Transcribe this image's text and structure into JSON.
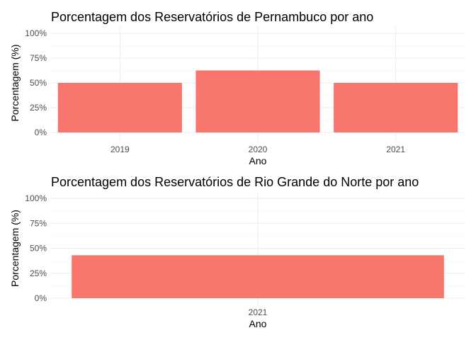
{
  "chart_data": [
    {
      "type": "bar",
      "title": "Porcentagem dos Reservatórios de Pernambuco por ano",
      "xlabel": "Ano",
      "ylabel": "Porcentagem (%)",
      "categories": [
        "2019",
        "2020",
        "2021"
      ],
      "values": [
        50,
        62.5,
        50
      ],
      "ylim": [
        0,
        100
      ],
      "yticks": [
        "0%",
        "25%",
        "50%",
        "75%",
        "100%"
      ],
      "grid": true,
      "bar_color": "#F8766D"
    },
    {
      "type": "bar",
      "title": "Porcentagem dos Reservatórios de Rio Grande do Norte por ano",
      "xlabel": "Ano",
      "ylabel": "Porcentagem (%)",
      "categories": [
        "2021"
      ],
      "values": [
        43
      ],
      "ylim": [
        0,
        100
      ],
      "yticks": [
        "0%",
        "25%",
        "50%",
        "75%",
        "100%"
      ],
      "grid": true,
      "bar_color": "#F8766D"
    }
  ]
}
